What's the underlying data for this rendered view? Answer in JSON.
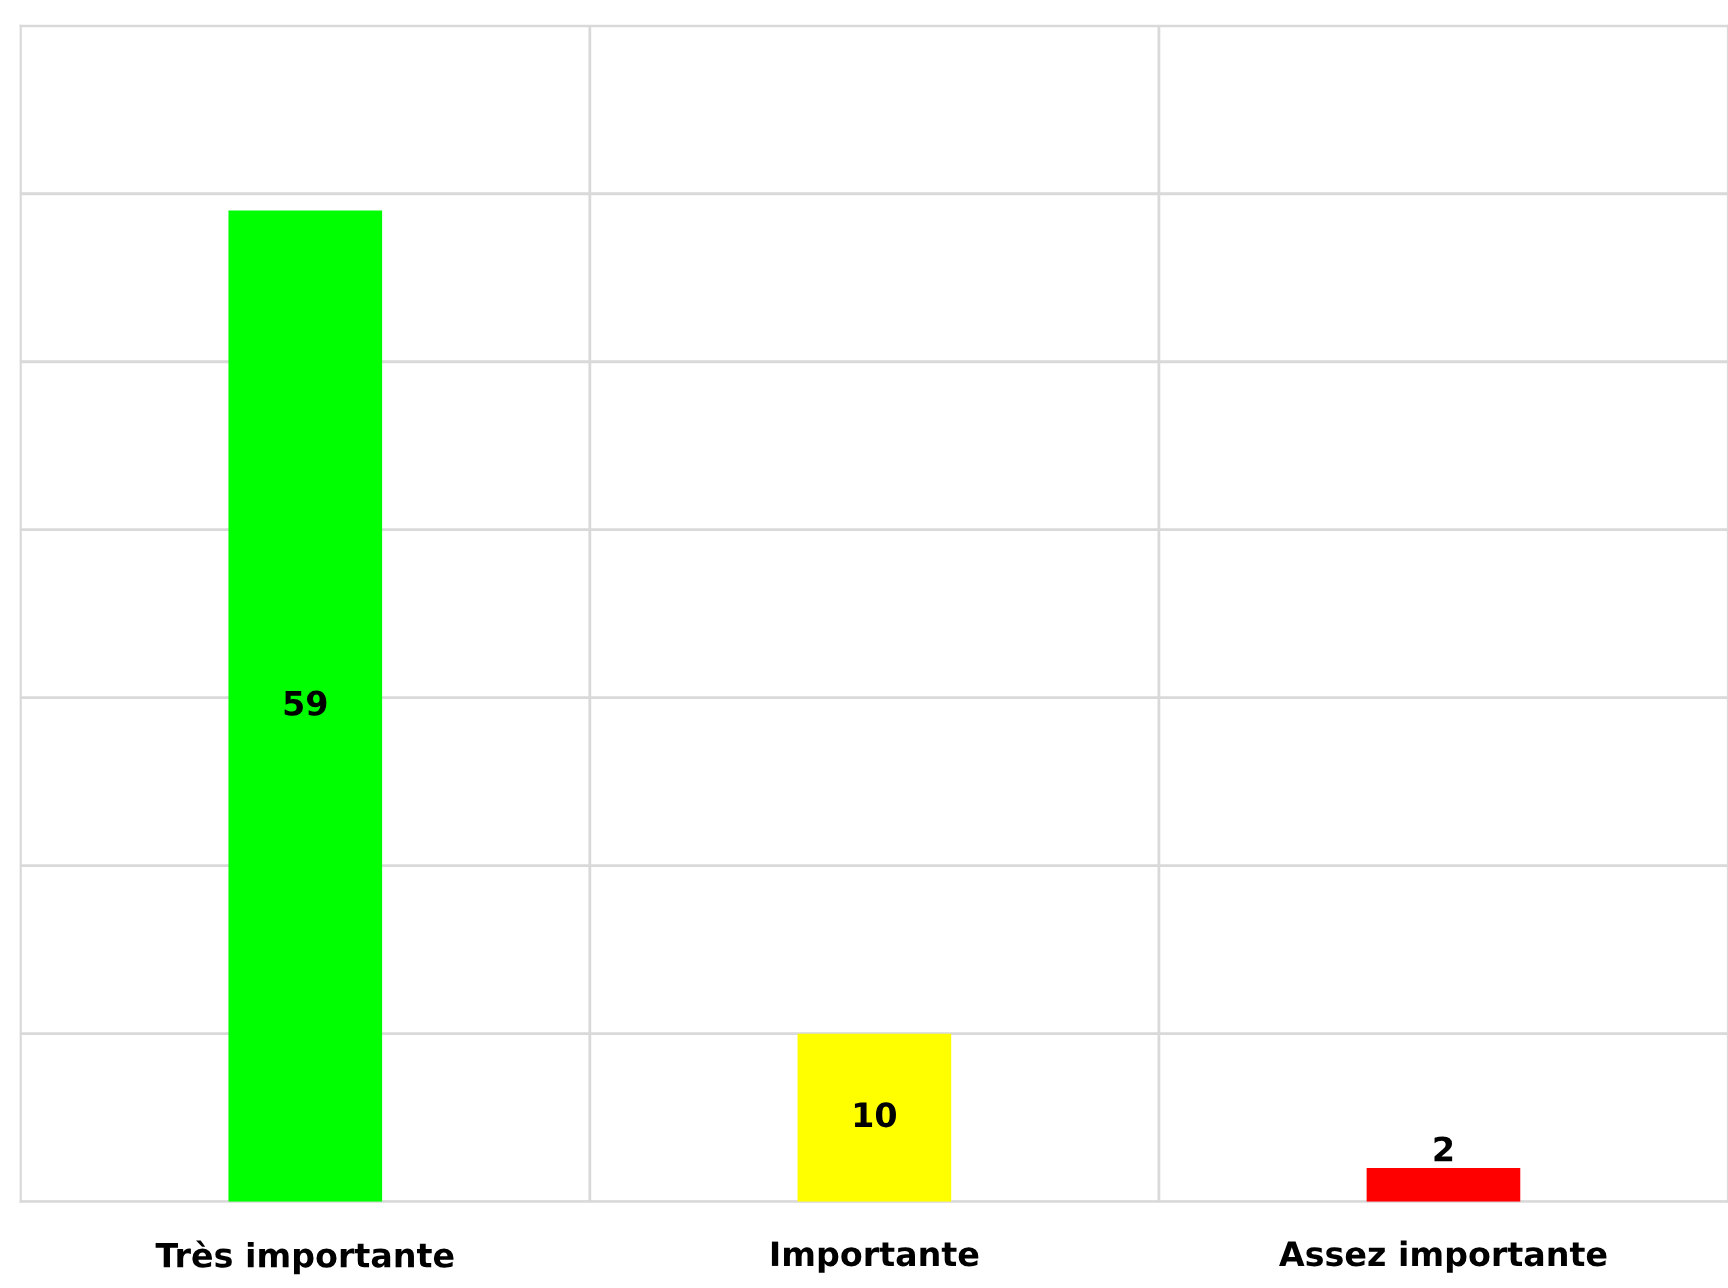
{
  "chart_data": {
    "type": "bar",
    "categories": [
      "Très importante",
      "Importante",
      "Assez importante"
    ],
    "values": [
      59,
      10,
      2
    ],
    "colors": [
      "#00ff00",
      "#ffff00",
      "#ff0000"
    ],
    "ylim": [
      0,
      70
    ],
    "yticks": [
      {
        "value": 0,
        "label": null
      },
      {
        "value": 10,
        "label": null
      },
      {
        "value": 20,
        "label": null
      },
      {
        "value": 30,
        "label": null
      },
      {
        "value": 40,
        "label": null
      },
      {
        "value": 50,
        "label": null
      },
      {
        "value": 60,
        "label": null
      },
      {
        "value": 70,
        "label": null
      }
    ],
    "tick_labels": "x",
    "grid": true,
    "data_labels": true,
    "legend": false
  }
}
